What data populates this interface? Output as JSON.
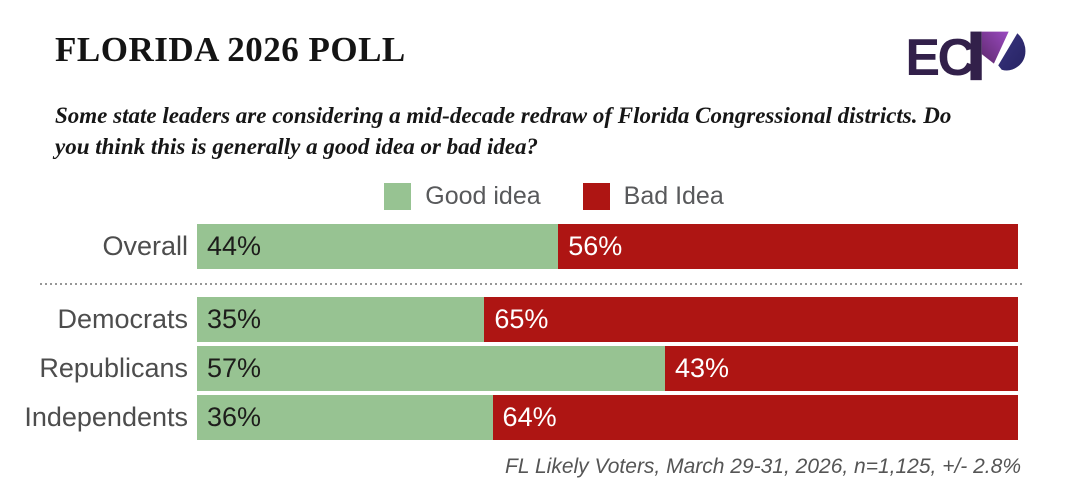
{
  "header": {
    "title": "FLORIDA 2026 POLL",
    "subtitle": "Some state leaders are considering a mid-decade redraw of Florida Congressional districts. Do you think this is generally a good idea or bad idea?",
    "logo_text": "ECP",
    "logo_ec": "EC",
    "logo_colors": {
      "dark": "#32204a",
      "purple": "#8e3fae",
      "indigo": "#2e2b72"
    }
  },
  "legend": [
    {
      "label": "Good idea",
      "color": "#97c392"
    },
    {
      "label": "Bad Idea",
      "color": "#ae1513"
    }
  ],
  "chart_data": {
    "type": "bar",
    "orientation": "horizontal-stacked",
    "categories": [
      "Overall",
      "Democrats",
      "Republicans",
      "Independents"
    ],
    "series": [
      {
        "name": "Good idea",
        "color": "#97c392",
        "values": [
          44,
          35,
          57,
          36
        ]
      },
      {
        "name": "Bad Idea",
        "color": "#ae1513",
        "values": [
          56,
          65,
          43,
          64
        ]
      }
    ],
    "value_suffix": "%",
    "xlim": [
      0,
      100
    ],
    "grid": false,
    "legend_position": "top",
    "label_color_on_good": "#1d1d1b",
    "label_color_on_bad": "#ffffff"
  },
  "footer": {
    "note": "FL Likely Voters, March 29-31, 2026, n=1,125, +/- 2.8%"
  }
}
